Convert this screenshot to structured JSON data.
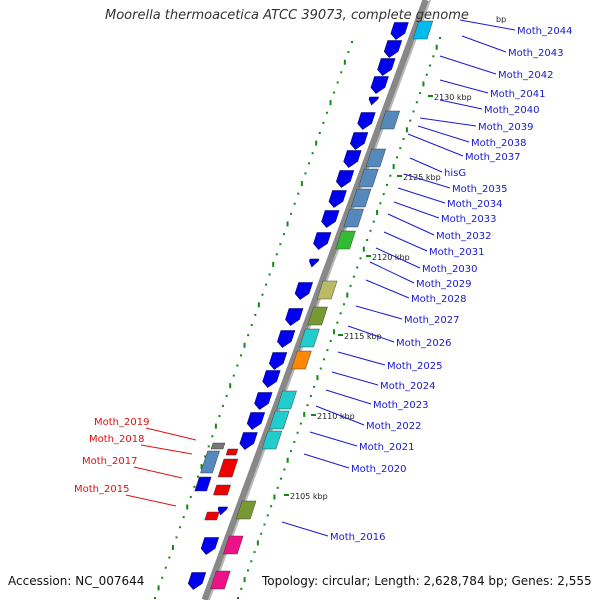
{
  "title": "Moorella thermoacetica ATCC 39073, complete genome",
  "footer": {
    "accession": "Accession: NC_007644",
    "topology": "Topology: circular; Length: 2,628,784 bp; Genes: 2,555"
  },
  "colors": {
    "forward_label": "#1a1acc",
    "reverse_label": "#dd1111",
    "backbone": "#888888",
    "gc_dots": "#118811"
  },
  "scale_ticks": [
    "2130 kbp",
    "2125 kbp",
    "2120 kbp",
    "2115 kbp",
    "2110 kbp",
    "2105 kbp"
  ],
  "edge_tick": "bp",
  "forward_genes": [
    "Moth_2044",
    "Moth_2043",
    "Moth_2042",
    "Moth_2041",
    "Moth_2040",
    "Moth_2039",
    "Moth_2038",
    "Moth_2037",
    "hisG",
    "Moth_2035",
    "Moth_2034",
    "Moth_2033",
    "Moth_2032",
    "Moth_2031",
    "Moth_2030",
    "Moth_2029",
    "Moth_2028",
    "Moth_2027",
    "Moth_2026",
    "Moth_2025",
    "Moth_2024",
    "Moth_2023",
    "Moth_2022",
    "Moth_2021",
    "Moth_2020",
    "Moth_2016"
  ],
  "reverse_genes": [
    "Moth_2019",
    "Moth_2018",
    "Moth_2017",
    "Moth_2015"
  ]
}
